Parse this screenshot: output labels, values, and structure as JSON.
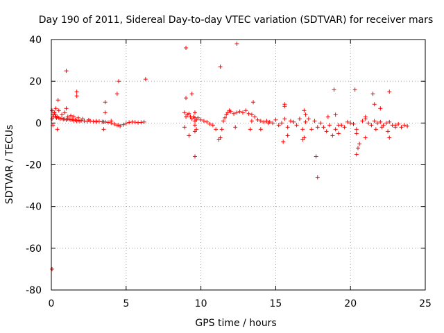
{
  "chart_data": {
    "type": "scatter",
    "title": "Day 190 of 2011, Sidereal Day-to-day VTEC variation (SDTVAR) for receiver mars",
    "xlabel": "GPS time / hours",
    "ylabel": "SDTVAR / TECUs",
    "xlim": [
      0,
      25
    ],
    "ylim": [
      -80,
      40
    ],
    "xticks": [
      0,
      5,
      10,
      15,
      20,
      25
    ],
    "xtick_labels": [
      "0",
      "5",
      "10",
      "15",
      "20",
      "25"
    ],
    "yticks": [
      -80,
      -60,
      -40,
      -20,
      0,
      20,
      40
    ],
    "ytick_labels": [
      "-80",
      "-60",
      "-40",
      "-20",
      "0",
      "20",
      "40"
    ],
    "grid": true,
    "marker": "+",
    "color": "#ff0000",
    "series": [
      {
        "name": "SDTVAR",
        "x": [
          0.05,
          0.1,
          0.15,
          0.2,
          0.25,
          0.3,
          0.35,
          0.4,
          0.5,
          0.6,
          0.7,
          0.8,
          0.9,
          1.0,
          1.1,
          1.2,
          1.3,
          1.4,
          1.5,
          1.6,
          1.7,
          1.8,
          1.9,
          2.0,
          2.2,
          2.4,
          2.6,
          2.8,
          3.0,
          3.2,
          3.4,
          3.6,
          3.8,
          4.0,
          4.2,
          4.4,
          4.6,
          4.8,
          5.0,
          5.2,
          5.4,
          5.6,
          5.8,
          6.0,
          6.2,
          0.05,
          0.1,
          0.2,
          0.3,
          0.5,
          0.7,
          0.9,
          1.1,
          1.3,
          1.5,
          1.8,
          2.1,
          2.5,
          3.0,
          3.5,
          4.0,
          4.5,
          0.05,
          0.4,
          1.0,
          1.7,
          1.7,
          3.5,
          3.6,
          3.6,
          4.4,
          4.5,
          6.3,
          0.45,
          1.0,
          8.9,
          9.0,
          9.1,
          9.2,
          9.3,
          9.4,
          9.5,
          9.6,
          9.7,
          9.8,
          10.0,
          10.2,
          10.4,
          10.6,
          10.8,
          11.0,
          11.2,
          11.3,
          11.4,
          11.5,
          11.6,
          11.7,
          11.8,
          11.9,
          12.0,
          12.2,
          12.4,
          12.6,
          12.8,
          13.0,
          13.2,
          13.4,
          13.6,
          8.9,
          9.0,
          9.2,
          9.4,
          9.6,
          9.6,
          9.7,
          9.6,
          9.0,
          9.6,
          9.6,
          11.3,
          12.4,
          12.3,
          13.5,
          13.3,
          13.8,
          14.0,
          14.2,
          14.4,
          14.6,
          14.8,
          15.0,
          15.2,
          15.4,
          15.6,
          15.8,
          16.0,
          16.2,
          16.4,
          16.6,
          16.8,
          17.0,
          17.2,
          17.4,
          17.6,
          17.8,
          18.0,
          18.2,
          18.4,
          18.6,
          18.8,
          19.0,
          19.2,
          19.4,
          19.6,
          19.8,
          20.0,
          20.2,
          20.4,
          20.6,
          20.8,
          21.0,
          21.2,
          21.4,
          21.6,
          21.8,
          22.0,
          22.2,
          22.4,
          22.6,
          22.8,
          23.0,
          23.2,
          23.4,
          23.6,
          23.8,
          15.5,
          15.6,
          15.8,
          16.8,
          16.9,
          17.0,
          17.7,
          17.8,
          18.9,
          19.0,
          20.3,
          20.4,
          20.5,
          21.0,
          21.5,
          21.6,
          21.7,
          22.0,
          22.5,
          22.6,
          22.6,
          16.9,
          15.6,
          18.5,
          19.2,
          20.4,
          21.0,
          22.1,
          23.0,
          13.4,
          14.0,
          14.5
        ],
        "y": [
          2,
          4,
          3,
          5,
          4,
          3,
          2.5,
          3,
          2.5,
          2,
          2.2,
          1.8,
          2,
          1.5,
          2,
          1.8,
          1.5,
          1.7,
          1.2,
          1.5,
          1,
          1.3,
          1,
          1.2,
          1,
          0.8,
          1,
          0.7,
          0.5,
          0.8,
          0.6,
          0.5,
          0.3,
          0,
          -0.5,
          -1,
          -1.5,
          -0.8,
          -0.2,
          0.3,
          0.5,
          0.4,
          0.2,
          0.3,
          0.5,
          6,
          -1,
          5,
          7,
          6,
          4,
          5,
          3,
          3.5,
          3,
          2.5,
          2,
          1.5,
          1,
          0.5,
          1,
          -1,
          -70,
          -3,
          25,
          15,
          13,
          -3,
          5,
          10,
          14,
          20,
          21,
          11,
          7,
          5,
          3,
          4,
          4.5,
          3,
          2,
          3,
          2.5,
          1.5,
          2.5,
          1.5,
          1,
          0.5,
          -0.5,
          -1,
          -3,
          -8,
          -7,
          -3,
          1,
          2.5,
          4,
          5,
          6,
          5.5,
          4.5,
          5,
          5.5,
          5,
          6,
          4.5,
          4,
          3,
          -2,
          36,
          -6,
          14,
          -16,
          -4,
          -3,
          5,
          12,
          -1,
          1,
          27,
          38,
          -2,
          10,
          -3,
          1.5,
          1,
          0.5,
          1,
          0.5,
          0,
          1.5,
          -1,
          0,
          2,
          -2,
          1,
          0.5,
          -1,
          2,
          -3,
          0.5,
          2,
          -3,
          1,
          -2,
          0,
          -2,
          -4,
          -1,
          -6,
          -3,
          -5,
          -1,
          -2,
          0.5,
          0,
          -0.5,
          -3,
          -10,
          1,
          2,
          0,
          -1,
          1,
          0,
          0.5,
          -1,
          0,
          0.5,
          -1,
          -1,
          -0.5,
          -2,
          -1,
          -1.5,
          -9,
          9,
          -6,
          -8,
          -7,
          4,
          -16,
          -26,
          16,
          4,
          16,
          -15,
          -12,
          -7,
          14,
          9,
          -3,
          7,
          -4,
          -7,
          15,
          6,
          8,
          3,
          -1,
          -5,
          3,
          -2,
          -2,
          1,
          -3,
          0
        ]
      }
    ]
  }
}
